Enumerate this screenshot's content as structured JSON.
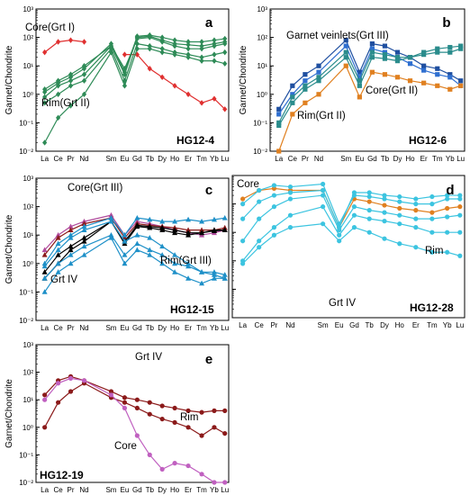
{
  "chart_data": [
    {
      "type": "line",
      "panel": "a",
      "sample": "HG12-4",
      "ylabel": "Garnet/Chondrite",
      "yscale": "log",
      "ylim": [
        0.01,
        1000
      ],
      "y_ticks": [
        "10^-2",
        "10^-1",
        "10^0",
        "10^1",
        "10^2",
        "10^3"
      ],
      "x_labels": [
        "La",
        "Ce",
        "Pr",
        "Nd",
        "Sm",
        "Eu",
        "Gd",
        "Tb",
        "Dy",
        "Ho",
        "Er",
        "Tm",
        "Yb",
        "Lu"
      ],
      "annotations": [
        "Core(Grt I)",
        "Rim(Grt II)"
      ],
      "series": [
        {
          "color": "#e03030",
          "marker": "diamond",
          "values": [
            30,
            70,
            80,
            70,
            null,
            25,
            25,
            8,
            4,
            2,
            1,
            0.5,
            0.7,
            0.3
          ]
        },
        {
          "color": "#2e8b57",
          "marker": "diamond",
          "values": [
            1.2,
            2.5,
            4,
            8,
            60,
            6,
            110,
            120,
            100,
            80,
            70,
            70,
            80,
            90
          ]
        },
        {
          "color": "#2e8b57",
          "marker": "diamond",
          "values": [
            0.8,
            2,
            3,
            5,
            50,
            5,
            100,
            110,
            80,
            60,
            55,
            50,
            60,
            70
          ]
        },
        {
          "color": "#2e8b57",
          "marker": "diamond",
          "values": [
            1.5,
            3,
            5,
            10,
            50,
            8,
            90,
            100,
            70,
            50,
            40,
            40,
            50,
            60
          ]
        },
        {
          "color": "#2e8b57",
          "marker": "diamond",
          "values": [
            0.5,
            1,
            2,
            3,
            40,
            3,
            60,
            50,
            40,
            30,
            25,
            20,
            25,
            30
          ]
        },
        {
          "color": "#2e8b57",
          "marker": "diamond",
          "values": [
            0.02,
            0.15,
            0.4,
            1,
            30,
            2,
            40,
            40,
            30,
            25,
            20,
            15,
            15,
            12
          ]
        }
      ]
    },
    {
      "type": "line",
      "panel": "b",
      "sample": "HG12-6",
      "ylabel": "Garnet/Chondrite",
      "yscale": "log",
      "ylim": [
        0.01,
        1000
      ],
      "y_ticks": [
        "10^-2",
        "10^-1",
        "10^0",
        "10^1",
        "10^2",
        "10^3"
      ],
      "x_labels": [
        "La",
        "Ce",
        "Pr",
        "Nd",
        "Sm",
        "Eu",
        "Gd",
        "Tb",
        "Dy",
        "Ho",
        "Er",
        "Tm",
        "Yb",
        "Lu"
      ],
      "annotations": [
        "Garnet veinlets(Grt III)",
        "Core(Grt II)",
        "Rim(Grt II)"
      ],
      "series": [
        {
          "color": "#1f4fa0",
          "marker": "square",
          "values": [
            0.3,
            2,
            5,
            10,
            80,
            6,
            60,
            50,
            30,
            20,
            10,
            8,
            5,
            3
          ]
        },
        {
          "color": "#2f6fd0",
          "marker": "square",
          "values": [
            0.2,
            1,
            3,
            6,
            50,
            4,
            40,
            30,
            20,
            12,
            7,
            5,
            4,
            2
          ]
        },
        {
          "color": "#2a8c8c",
          "marker": "square",
          "values": [
            0.1,
            0.8,
            2,
            4,
            30,
            3,
            30,
            25,
            20,
            20,
            25,
            30,
            30,
            40
          ]
        },
        {
          "color": "#2a8c8c",
          "marker": "square",
          "values": [
            0.08,
            0.5,
            1.5,
            3,
            20,
            2,
            20,
            18,
            15,
            20,
            30,
            40,
            45,
            50
          ]
        },
        {
          "color": "#e08020",
          "marker": "square",
          "values": [
            0.01,
            0.2,
            0.5,
            1,
            10,
            0.8,
            6,
            5,
            4,
            3,
            2.5,
            2,
            1.5,
            2
          ]
        }
      ]
    },
    {
      "type": "line",
      "panel": "c",
      "sample": "HG12-15",
      "ylabel": "Garnet/Chondrite",
      "yscale": "log",
      "ylim": [
        0.01,
        1000
      ],
      "y_ticks": [
        "10^-2",
        "10^-1",
        "10^0",
        "10^1",
        "10^2",
        "10^3"
      ],
      "x_labels": [
        "La",
        "Ce",
        "Pr",
        "Nd",
        "Sm",
        "Eu",
        "Gd",
        "Tb",
        "Dy",
        "Ho",
        "Er",
        "Tm",
        "Yb",
        "Lu"
      ],
      "annotations": [
        "Core(Grt III)",
        "Rim(Grt III)",
        "Grt IV"
      ],
      "series": [
        {
          "color": "#b04a9c",
          "marker": "triangle",
          "values": [
            3,
            10,
            20,
            30,
            50,
            10,
            30,
            25,
            20,
            15,
            12,
            10,
            12,
            15
          ]
        },
        {
          "color": "#8b1a1a",
          "marker": "triangle",
          "values": [
            2,
            8,
            15,
            25,
            40,
            8,
            25,
            22,
            20,
            18,
            15,
            15,
            15,
            18
          ]
        },
        {
          "color": "#000000",
          "marker": "triangle",
          "values": [
            0.3,
            1,
            3,
            6,
            30,
            5,
            20,
            18,
            15,
            12,
            10,
            12,
            15,
            15
          ]
        },
        {
          "color": "#000000",
          "marker": "triangle",
          "values": [
            0.5,
            2,
            4,
            8,
            30,
            6,
            22,
            20,
            18,
            15,
            12,
            12,
            14,
            15
          ]
        },
        {
          "color": "#1e90c8",
          "marker": "triangle",
          "values": [
            1,
            5,
            10,
            20,
            40,
            10,
            40,
            35,
            30,
            30,
            35,
            30,
            35,
            40
          ]
        },
        {
          "color": "#1e90c8",
          "marker": "triangle",
          "values": [
            0.8,
            3,
            8,
            15,
            30,
            6,
            10,
            8,
            4,
            2,
            1,
            0.5,
            0.4,
            0.3
          ]
        },
        {
          "color": "#1e90c8",
          "marker": "triangle",
          "values": [
            0.3,
            1,
            2,
            4,
            10,
            2,
            5,
            3,
            2,
            1,
            0.8,
            0.5,
            0.5,
            0.4
          ]
        },
        {
          "color": "#1e90c8",
          "marker": "triangle",
          "values": [
            0.1,
            0.5,
            1,
            2,
            8,
            1,
            3,
            2,
            1,
            0.5,
            0.3,
            0.2,
            0.3,
            0.3
          ]
        }
      ]
    },
    {
      "type": "line",
      "panel": "d",
      "sample": "HG12-28",
      "ylabel": "",
      "yscale": "log",
      "ylim": [
        0.01,
        1000
      ],
      "x_labels": [
        "La",
        "Ce",
        "Pr",
        "Nd",
        "Sm",
        "Eu",
        "Gd",
        "Tb",
        "Dy",
        "Ho",
        "Er",
        "Tm",
        "Yb",
        "Lu"
      ],
      "annotations": [
        "Core",
        "Rim",
        "Grt IV"
      ],
      "series": [
        {
          "color": "#e08020",
          "marker": "circle",
          "values": [
            150,
            300,
            350,
            300,
            300,
            15,
            150,
            120,
            90,
            70,
            60,
            50,
            70,
            80
          ]
        },
        {
          "color": "#3cc4e0",
          "marker": "circle",
          "values": [
            100,
            300,
            450,
            400,
            500,
            20,
            200,
            180,
            150,
            120,
            100,
            100,
            150,
            150
          ]
        },
        {
          "color": "#3cc4e0",
          "marker": "circle",
          "values": [
            30,
            120,
            200,
            250,
            300,
            15,
            250,
            250,
            200,
            180,
            150,
            180,
            200,
            200
          ]
        },
        {
          "color": "#3cc4e0",
          "marker": "circle",
          "values": [
            5,
            30,
            80,
            150,
            200,
            12,
            80,
            60,
            50,
            40,
            30,
            30,
            35,
            40
          ]
        },
        {
          "color": "#3cc4e0",
          "marker": "circle",
          "values": [
            1,
            5,
            15,
            40,
            80,
            8,
            40,
            30,
            25,
            20,
            15,
            10,
            10,
            10
          ]
        },
        {
          "color": "#3cc4e0",
          "marker": "circle",
          "values": [
            0.8,
            3,
            8,
            15,
            20,
            5,
            15,
            10,
            6,
            4,
            3,
            2,
            2,
            1.5
          ]
        }
      ]
    },
    {
      "type": "line",
      "panel": "e",
      "sample": "HG12-19",
      "ylabel": "Garnet/Chondrite",
      "yscale": "log",
      "ylim": [
        0.01,
        1000
      ],
      "y_ticks": [
        "10^-2",
        "10^-1",
        "10^0",
        "10^1",
        "10^2",
        "10^3"
      ],
      "x_labels": [
        "La",
        "Ce",
        "Pr",
        "Nd",
        "Sm",
        "Eu",
        "Gd",
        "Tb",
        "Dy",
        "Ho",
        "Er",
        "Tm",
        "Yb",
        "Lu"
      ],
      "annotations": [
        "Grt IV",
        "Rim",
        "Core"
      ],
      "series": [
        {
          "color": "#8b1a1a",
          "marker": "circle",
          "values": [
            15,
            50,
            70,
            50,
            20,
            12,
            10,
            8,
            6,
            5,
            4,
            3.5,
            4,
            4
          ]
        },
        {
          "color": "#8b1a1a",
          "marker": "circle",
          "values": [
            1,
            8,
            20,
            40,
            12,
            8,
            5,
            3,
            2,
            1.5,
            1,
            0.5,
            1,
            0.6
          ]
        },
        {
          "color": "#c060c0",
          "marker": "circle",
          "values": [
            10,
            40,
            60,
            50,
            15,
            5,
            0.5,
            0.1,
            0.03,
            0.05,
            0.04,
            0.02,
            0.01,
            0.01
          ]
        }
      ]
    }
  ]
}
